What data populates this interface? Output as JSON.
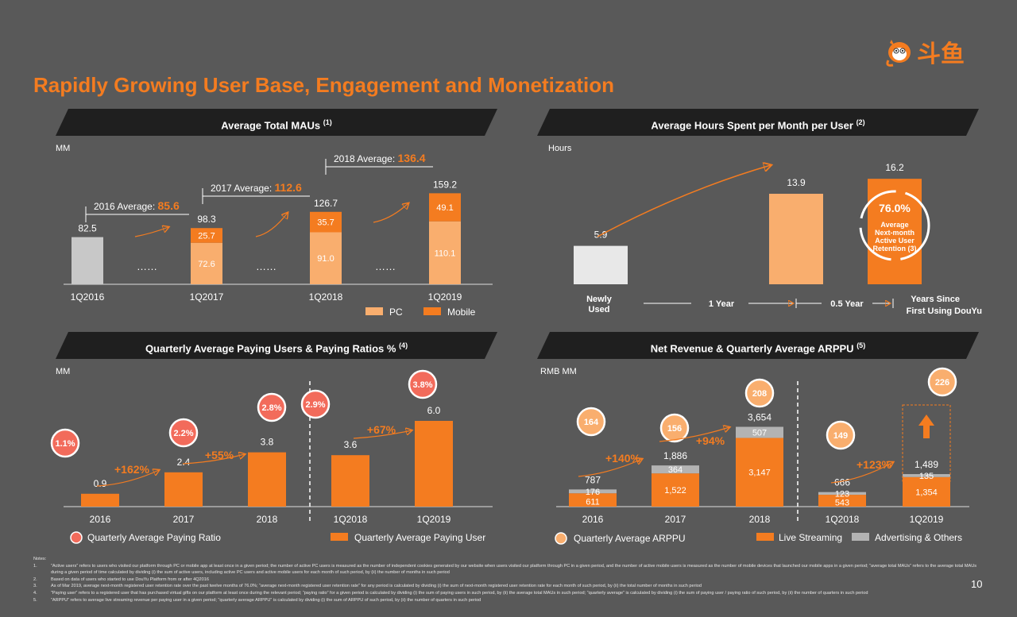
{
  "title": "Rapidly Growing User Base, Engagement and Monetization",
  "brand": {
    "logo_icon": "douyu-fish-mascot-icon",
    "logo_text": "斗鱼",
    "colors": {
      "orange": "#f47c20",
      "light_orange": "#f9ae6e",
      "gray_bar": "#c8c8c8",
      "bubble": "#f26b5b",
      "band": "#1f1f1f",
      "background": "#595959"
    }
  },
  "panels": {
    "mau": {
      "heading": "Average Total MAUs",
      "note_ref": "(1)",
      "unit": "MM"
    },
    "hours": {
      "heading": "Average Hours Spent per Month per User",
      "note_ref": "(2)",
      "unit": "Hours"
    },
    "paying": {
      "heading": "Quarterly Average Paying Users & Paying Ratios %",
      "note_ref": "(4)",
      "unit": "MM"
    },
    "revenue": {
      "heading": "Net Revenue & Quarterly Average ARPPU",
      "note_ref": "(5)",
      "unit": "RMB MM"
    }
  },
  "chart_data": [
    {
      "type": "bar",
      "categories": [
        "1Q2016",
        "1Q2017",
        "1Q2018",
        "1Q2019"
      ],
      "totals": [
        82.5,
        98.3,
        126.7,
        159.2
      ],
      "series": [
        {
          "name": "PC",
          "values": [
            null,
            72.6,
            91.0,
            110.1
          ]
        },
        {
          "name": "Mobile",
          "values": [
            null,
            25.7,
            35.7,
            49.1
          ]
        }
      ],
      "segment_labels": {
        "pc": [
          "",
          "72.6",
          "91.0",
          "110.1"
        ],
        "mobile": [
          "",
          "25.7",
          "35.7",
          "49.1"
        ]
      },
      "total_labels": [
        "82.5",
        "98.3",
        "126.7",
        "159.2"
      ],
      "annual_averages": [
        {
          "prefix": "2016 Average: ",
          "value": "85.6"
        },
        {
          "prefix": "2017 Average: ",
          "value": "112.6"
        },
        {
          "prefix": "2018 Average: ",
          "value": "136.4"
        }
      ],
      "gap_marker": "……",
      "legend": [
        "PC",
        "Mobile"
      ]
    },
    {
      "type": "bar",
      "categories": [
        "Newly Used",
        "1 Year",
        "0.5 Year"
      ],
      "values": [
        5.9,
        13.9,
        16.2
      ],
      "value_labels": [
        "5.9",
        "13.9",
        "16.2"
      ],
      "x_labels": {
        "start": "Newly Used",
        "mid1": "1 Year",
        "mid2": "0.5 Year",
        "end": "Years Since First Using DouYu"
      },
      "retention_badge": {
        "value": "76.0%",
        "caption": "Average Next-month Active User Retention",
        "note_ref": "(3)"
      }
    },
    {
      "type": "bar",
      "categories": [
        "2016",
        "2017",
        "2018",
        "1Q2018",
        "1Q2019"
      ],
      "values": [
        0.9,
        2.4,
        3.8,
        3.6,
        6.0
      ],
      "value_labels": [
        "0.9",
        "2.4",
        "3.8",
        "3.6",
        "6.0"
      ],
      "paying_ratios": [
        "1.1%",
        "2.2%",
        "2.8%",
        "2.9%",
        "3.8%"
      ],
      "growth_labels": [
        "+162%",
        "+55%",
        "+67%"
      ],
      "legend": [
        "Quarterly Average Paying Ratio",
        "Quarterly Average Paying User"
      ]
    },
    {
      "type": "bar",
      "categories": [
        "2016",
        "2017",
        "2018",
        "1Q2018",
        "1Q2019"
      ],
      "totals": [
        787,
        1886,
        3654,
        666,
        1489
      ],
      "series": [
        {
          "name": "Live Streaming",
          "values": [
            611,
            1522,
            3147,
            543,
            1354
          ]
        },
        {
          "name": "Advertising & Others",
          "values": [
            176,
            364,
            507,
            123,
            135
          ]
        }
      ],
      "live_labels": [
        "611",
        "1,522",
        "3,147",
        "543",
        "1,354"
      ],
      "adv_labels": [
        "176",
        "364",
        "507",
        "123",
        "135"
      ],
      "total_labels": [
        "787",
        "1,886",
        "3,654",
        "666",
        "1,489"
      ],
      "arppu": [
        "164",
        "156",
        "208",
        "149",
        "226"
      ],
      "growth_labels": [
        "+140%",
        "+94%",
        "+123%"
      ],
      "legend": [
        "Quarterly Average ARPPU",
        "Live Streaming",
        "Advertising & Others"
      ]
    }
  ],
  "notes": {
    "heading": "Notes:",
    "items": [
      {
        "num": "1.",
        "text": "“Active users” refers to users who visited our platform through PC or mobile app at least once in a given period; the number of active PC users is measured as the number of independent cookies generated by our website when users visited our platform through PC in a given period, and the number of active mobile users is measured as the number of mobile devices that launched our mobile apps in a given period; “average total MAUs” refers to the average total MAUs during a given period of time calculated by dividing (i) the sum of active users, including active PC users and active mobile users for each month of such period, by (ii) the number of months in such period"
      },
      {
        "num": "2.",
        "text": "Based on data of users who started to use DouYu Platform from or after 4Q2016"
      },
      {
        "num": "3.",
        "text": "As of Mar 2019, average next-month registered user retention rate over the past twelve months of 76.0%; “average next-month registered user retention rate” for any period is calculated by dividing (i) the sum of next-month registered user retention rate for each month of such period, by (ii) the total number of months in such period"
      },
      {
        "num": "4.",
        "text": "“Paying user” refers to a registered user that has purchased virtual gifts on our platform at least once during the relevant period; “paying ratio” for a given period is calculated by dividing (i) the sum of paying users in such period, by (ii) the average total MAUs in such period; “quarterly average” is calculated by dividing (i) the sum of paying user / paying ratio of such period, by (ii) the number of quarters in such period"
      },
      {
        "num": "5.",
        "text": "“ARPPU” refers to average live streaming revenue per paying user in a given period; “quarterly average ARPPU” is calculated by dividing (i) the sum of ARPPU of such period, by (ii) the number of quarters in such period"
      }
    ]
  },
  "page_number": "10"
}
